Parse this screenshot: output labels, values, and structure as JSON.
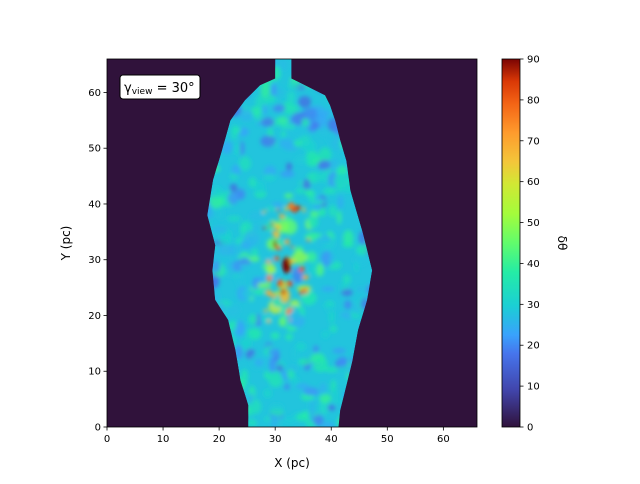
{
  "chart_data": {
    "type": "heatmap",
    "xlabel": "X (pc)",
    "ylabel": "Y (pc)",
    "xlim": [
      0,
      66
    ],
    "ylim": [
      0,
      66
    ],
    "xticks": [
      "0",
      "10",
      "20",
      "30",
      "40",
      "50",
      "60"
    ],
    "yticks": [
      "0",
      "10",
      "20",
      "30",
      "40",
      "50",
      "60"
    ],
    "annotation": {
      "base": "γ",
      "sub": "view",
      "rest": " = 30°",
      "x": 3,
      "y": 60.5
    },
    "colormap": "turbo",
    "background_value": 0,
    "typical_value": 28,
    "peak_value": 90,
    "peak_location": [
      32,
      29
    ],
    "colorbar": {
      "label": "δθ",
      "range": [
        0,
        90
      ],
      "ticks": [
        "0",
        "10",
        "20",
        "30",
        "40",
        "50",
        "60",
        "70",
        "80",
        "90"
      ]
    },
    "region_outline": [
      [
        30,
        66
      ],
      [
        32.9,
        66
      ],
      [
        32.9,
        62.5
      ],
      [
        38.9,
        59.5
      ],
      [
        39.8,
        57.7
      ],
      [
        40.7,
        55
      ],
      [
        41.6,
        51.4
      ],
      [
        42.7,
        47.8
      ],
      [
        43.4,
        42.5
      ],
      [
        45.5,
        35.3
      ],
      [
        47.3,
        28.1
      ],
      [
        46.4,
        22.8
      ],
      [
        44.8,
        17.4
      ],
      [
        43.8,
        12
      ],
      [
        42.5,
        6.6
      ],
      [
        41.6,
        3
      ],
      [
        41.3,
        0
      ],
      [
        25.2,
        0
      ],
      [
        25.2,
        3.9
      ],
      [
        23.8,
        8.4
      ],
      [
        22.9,
        13.8
      ],
      [
        21.6,
        19.2
      ],
      [
        19.3,
        22.8
      ],
      [
        18.8,
        28.1
      ],
      [
        19.3,
        32.6
      ],
      [
        17.9,
        38
      ],
      [
        18.9,
        44.3
      ],
      [
        20.5,
        49.6
      ],
      [
        22,
        55
      ],
      [
        24.6,
        58.6
      ],
      [
        27.3,
        61.3
      ],
      [
        30,
        62.5
      ]
    ]
  }
}
